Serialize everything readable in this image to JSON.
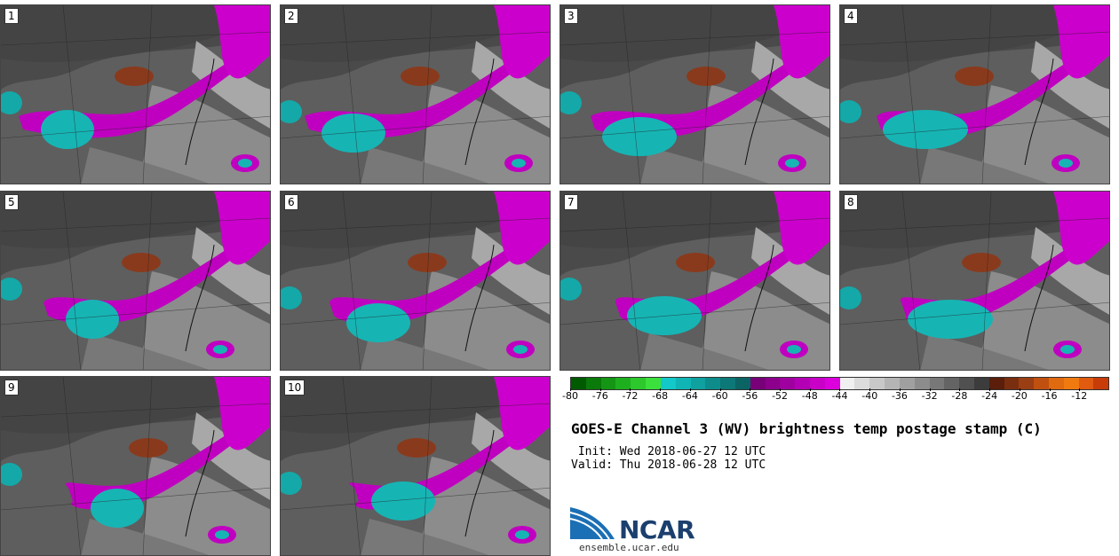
{
  "panels": [
    {
      "label": "1"
    },
    {
      "label": "2"
    },
    {
      "label": "3"
    },
    {
      "label": "4"
    },
    {
      "label": "5"
    },
    {
      "label": "6"
    },
    {
      "label": "7"
    },
    {
      "label": "8"
    },
    {
      "label": "9"
    },
    {
      "label": "10"
    }
  ],
  "colorbar": {
    "ticks": [
      "-80",
      "-76",
      "-72",
      "-68",
      "-64",
      "-60",
      "-56",
      "-52",
      "-48",
      "-44",
      "-40",
      "-36",
      "-32",
      "-28",
      "-24",
      "-20",
      "-16",
      "-12"
    ],
    "colors": [
      "#005a00",
      "#0a7a0a",
      "#149614",
      "#1eaf1e",
      "#2cc82c",
      "#3ce03c",
      "#12c8c8",
      "#10b4b4",
      "#0fa0a0",
      "#0e8c8c",
      "#0d7878",
      "#0b6464",
      "#780078",
      "#8c008c",
      "#a000a0",
      "#b400b4",
      "#c800c8",
      "#dc00dc",
      "#f0f0f0",
      "#dcdcdc",
      "#c8c8c8",
      "#b4b4b4",
      "#a0a0a0",
      "#8c8c8c",
      "#787878",
      "#646464",
      "#505050",
      "#3c3c3c",
      "#5a1e0a",
      "#7a2e10",
      "#9a3e14",
      "#c05010",
      "#e06a10",
      "#f07a10",
      "#e05a10",
      "#c83c0a"
    ]
  },
  "title": "GOES-E Channel 3 (WV) brightness temp postage stamp (C)",
  "init_text": " Init: Wed 2018-06-27 12 UTC",
  "valid_text": "Valid: Thu 2018-06-28 12 UTC",
  "logo": {
    "name": "NCAR",
    "url": "ensemble.ucar.edu",
    "brand_color": "#1b3f6e",
    "accent_color": "#2a7fc0"
  }
}
